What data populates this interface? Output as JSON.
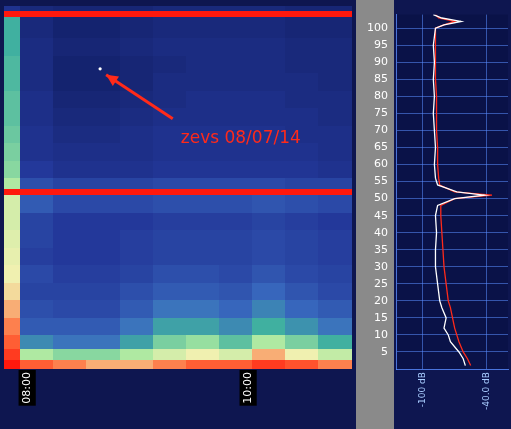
{
  "chart_data": [
    {
      "type": "heatmap",
      "x_edges": [
        7.85,
        8.0,
        8.3,
        8.6,
        8.9,
        9.2,
        9.5,
        9.8,
        10.1,
        10.4,
        10.7,
        11.0
      ],
      "y_edges": [
        0,
        3,
        6,
        10,
        15,
        20,
        25,
        30,
        35,
        40,
        45,
        50,
        52,
        55,
        60,
        65,
        70,
        75,
        80,
        85,
        90,
        95,
        101,
        103,
        104
      ],
      "cells": [
        [
          -42,
          -48,
          -50,
          -52,
          -52,
          -50,
          -48,
          -48,
          -45,
          -47,
          -50
        ],
        [
          -45,
          -62,
          -65,
          -65,
          -62,
          -58,
          -55,
          -58,
          -52,
          -55,
          -60
        ],
        [
          -48,
          -75,
          -78,
          -78,
          -72,
          -66,
          -64,
          -68,
          -62,
          -66,
          -70
        ],
        [
          -50,
          -82,
          -82,
          -82,
          -78,
          -72,
          -72,
          -75,
          -70,
          -74,
          -78
        ],
        [
          -52,
          -84,
          -85,
          -85,
          -82,
          -78,
          -78,
          -80,
          -76,
          -80,
          -82
        ],
        [
          -54,
          -86,
          -86,
          -86,
          -84,
          -82,
          -82,
          -83,
          -80,
          -83,
          -85
        ],
        [
          -55,
          -85,
          -87,
          -87,
          -86,
          -84,
          -84,
          -85,
          -83,
          -85,
          -86
        ],
        [
          -56,
          -87,
          -88,
          -88,
          -87,
          -86,
          -86,
          -86,
          -85,
          -86,
          -87
        ],
        [
          -57,
          -86,
          -88,
          -88,
          -87,
          -86,
          -86,
          -86,
          -85,
          -86,
          -87
        ],
        [
          -58,
          -86,
          -88,
          -88,
          -88,
          -87,
          -87,
          -87,
          -86,
          -87,
          -88
        ],
        [
          -58,
          -82,
          -85,
          -85,
          -85,
          -84,
          -84,
          -84,
          -83,
          -84,
          -85
        ],
        [
          -42,
          -42,
          -42,
          -42,
          -42,
          -42,
          -42,
          -42,
          -42,
          -42,
          -42
        ],
        [
          -62,
          -84,
          -86,
          -86,
          -86,
          -85,
          -85,
          -85,
          -85,
          -86,
          -86
        ],
        [
          -65,
          -88,
          -90,
          -90,
          -90,
          -89,
          -89,
          -89,
          -89,
          -89,
          -90
        ],
        [
          -66,
          -90,
          -91,
          -91,
          -91,
          -90,
          -90,
          -90,
          -90,
          -90,
          -91
        ],
        [
          -67,
          -90,
          -92,
          -92,
          -91,
          -90,
          -90,
          -90,
          -90,
          -91,
          -91
        ],
        [
          -68,
          -91,
          -93,
          -93,
          -92,
          -91,
          -91,
          -91,
          -91,
          -91,
          -92
        ],
        [
          -68,
          -91,
          -94,
          -94,
          -93,
          -92,
          -91,
          -91,
          -91,
          -92,
          -92
        ],
        [
          -69,
          -92,
          -95,
          -95,
          -94,
          -92,
          -92,
          -92,
          -92,
          -92,
          -93
        ],
        [
          -69,
          -92,
          -95,
          -95,
          -94,
          -93,
          -92,
          -92,
          -92,
          -93,
          -93
        ],
        [
          -70,
          -92,
          -94,
          -94,
          -93,
          -92,
          -92,
          -92,
          -92,
          -93,
          -93
        ],
        [
          -70,
          -93,
          -95,
          -95,
          -94,
          -93,
          -93,
          -93,
          -93,
          -94,
          -94
        ],
        [
          -42,
          -42,
          -42,
          -42,
          -42,
          -42,
          -42,
          -42,
          -42,
          -42,
          -42
        ],
        [
          -90,
          -93,
          -94,
          -94,
          -94,
          -93,
          -93,
          -93,
          -93,
          -94,
          -94
        ]
      ],
      "zlim": [
        -100,
        -40
      ],
      "xlim": [
        7.85,
        11.0
      ],
      "xticks": [
        {
          "value": 8,
          "label": "08:00"
        },
        {
          "value": 10,
          "label": "10:00"
        }
      ],
      "ylim": [
        0,
        104
      ],
      "grid": true,
      "tick_labels": "x",
      "annotations": [
        {
          "text": "zevs 08/07/14",
          "x": 9.45,
          "y": 66,
          "point": [
            8.72,
            86
          ]
        }
      ]
    },
    {
      "type": "line",
      "orientation": "horizontal",
      "y": [
        1,
        3,
        5,
        8,
        10,
        12,
        15,
        18,
        20,
        25,
        30,
        35,
        40,
        45,
        48,
        50,
        51,
        52,
        54,
        56,
        60,
        65,
        70,
        75,
        80,
        85,
        90,
        95,
        100,
        101,
        102,
        103,
        104
      ],
      "series": [
        {
          "color": "#ffffff",
          "values": [
            -60,
            -62,
            -66,
            -74,
            -76,
            -80,
            -78,
            -82,
            -84,
            -86,
            -88,
            -88,
            -87,
            -88,
            -86,
            -70,
            -42,
            -68,
            -86,
            -88,
            -89,
            -88,
            -89,
            -90,
            -89,
            -90,
            -89,
            -90,
            -88,
            -80,
            -64,
            -82,
            -90
          ]
        },
        {
          "color": "#ff2a1a",
          "values": [
            -55,
            -58,
            -62,
            -66,
            -68,
            -70,
            -72,
            -74,
            -76,
            -78,
            -80,
            -81,
            -82,
            -83,
            -83,
            -70,
            -35,
            -70,
            -84,
            -85,
            -86,
            -86,
            -87,
            -87,
            -87,
            -88,
            -88,
            -88,
            -88,
            -80,
            -70,
            -85,
            -88
          ]
        }
      ],
      "xlim": [
        -125,
        -20
      ],
      "xticks": [
        {
          "value": -100,
          "label": "-100 dB"
        },
        {
          "value": -40,
          "label": "-40.0 dB"
        }
      ],
      "ylim": [
        0,
        104
      ],
      "yticks": [
        5,
        10,
        15,
        20,
        25,
        30,
        35,
        40,
        45,
        50,
        55,
        60,
        65,
        70,
        75,
        80,
        85,
        90,
        95,
        100
      ],
      "grid": true
    }
  ]
}
